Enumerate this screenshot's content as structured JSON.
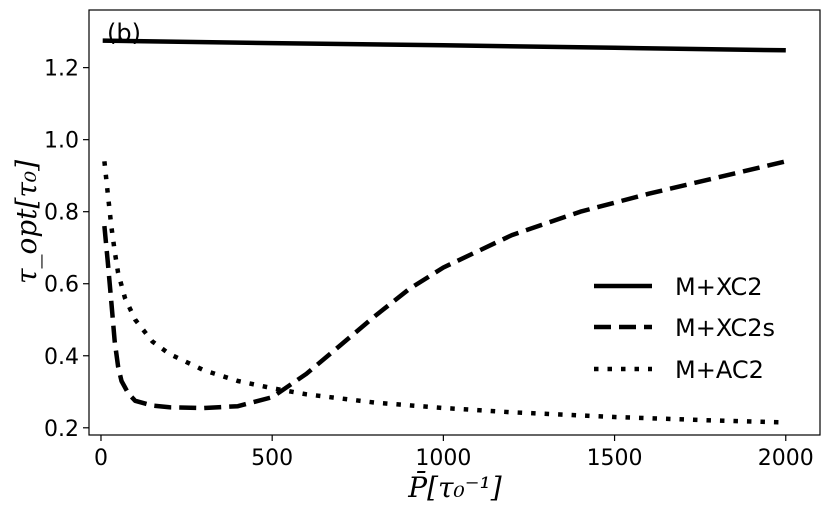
{
  "chart_data": {
    "type": "line",
    "panel_label": "(b)",
    "xlabel": "P̄[τ₀⁻¹]",
    "ylabel": "τ_opt[τ₀]",
    "xlim": [
      -35,
      2100
    ],
    "ylim": [
      0.18,
      1.36
    ],
    "xticks": [
      0,
      500,
      1000,
      1500,
      2000
    ],
    "xtick_labels": [
      "0",
      "500",
      "1000",
      "1500",
      "2000"
    ],
    "yticks": [
      0.2,
      0.4,
      0.6,
      0.8,
      1.0,
      1.2
    ],
    "ytick_labels": [
      "0.2",
      "0.4",
      "0.6",
      "0.8",
      "1.0",
      "1.2"
    ],
    "grid": false,
    "legend_position": "center-right",
    "series": [
      {
        "name": "M+XC2",
        "style": "solid",
        "x": [
          5,
          500,
          1000,
          1500,
          2000
        ],
        "y": [
          1.275,
          1.268,
          1.262,
          1.255,
          1.248
        ]
      },
      {
        "name": "M+XC2s",
        "style": "dashed",
        "x": [
          10,
          20,
          30,
          40,
          50,
          60,
          80,
          100,
          150,
          200,
          300,
          400,
          500,
          600,
          700,
          800,
          900,
          1000,
          1200,
          1400,
          1600,
          1800,
          2000
        ],
        "y": [
          0.76,
          0.66,
          0.55,
          0.44,
          0.37,
          0.33,
          0.295,
          0.275,
          0.262,
          0.257,
          0.255,
          0.26,
          0.285,
          0.35,
          0.43,
          0.51,
          0.585,
          0.645,
          0.735,
          0.8,
          0.85,
          0.895,
          0.94
        ]
      },
      {
        "name": "M+AC2",
        "style": "dotted",
        "x": [
          10,
          20,
          30,
          40,
          50,
          70,
          100,
          150,
          200,
          300,
          400,
          500,
          600,
          800,
          1000,
          1200,
          1500,
          1800,
          2000
        ],
        "y": [
          0.94,
          0.85,
          0.76,
          0.69,
          0.63,
          0.56,
          0.5,
          0.44,
          0.405,
          0.36,
          0.33,
          0.31,
          0.293,
          0.27,
          0.255,
          0.243,
          0.23,
          0.22,
          0.215
        ]
      }
    ]
  }
}
